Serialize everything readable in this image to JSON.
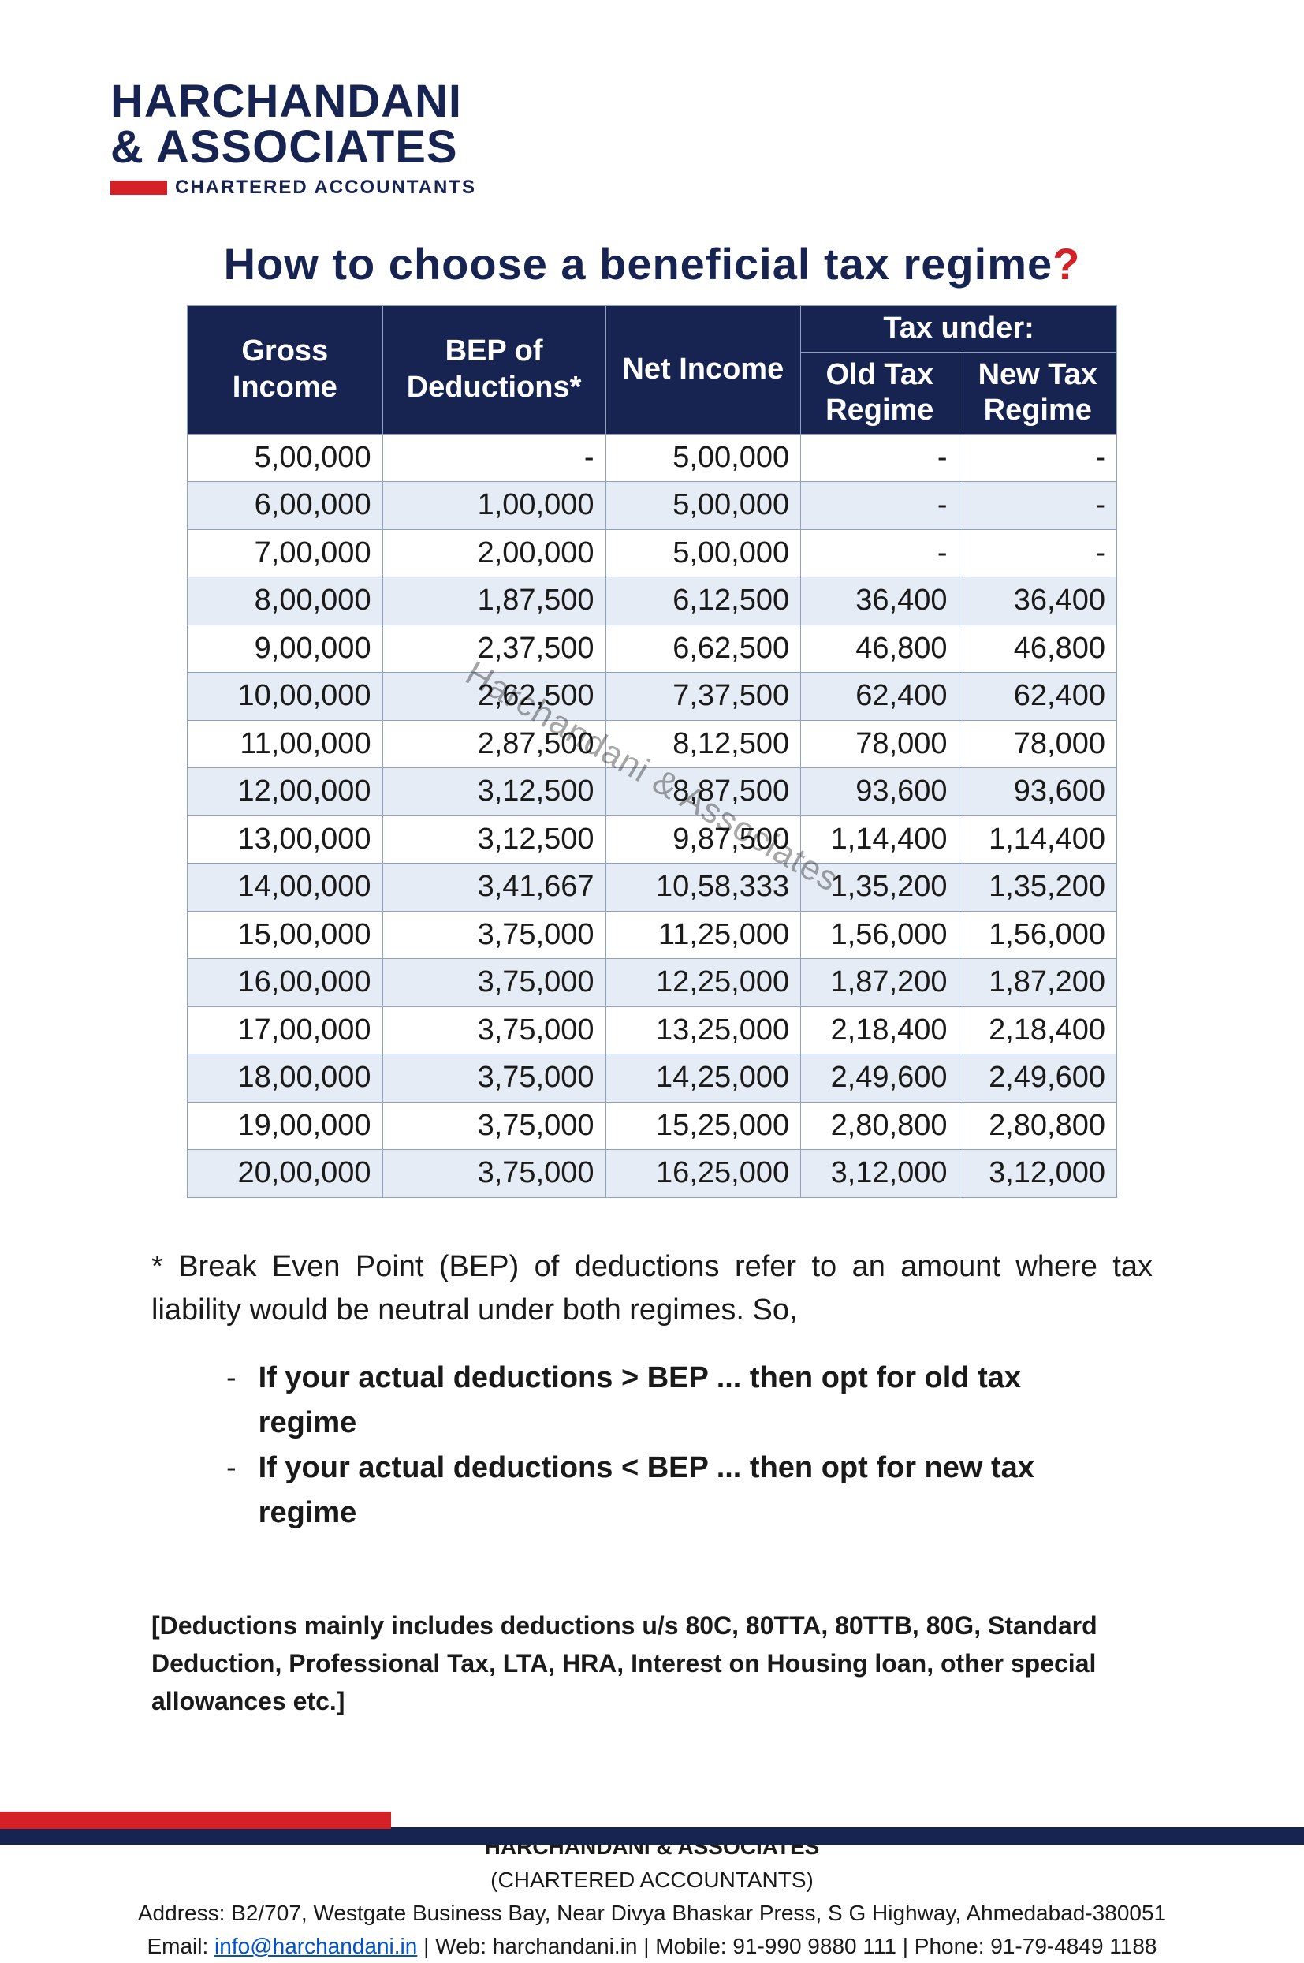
{
  "logo": {
    "line1": "HARCHANDANI",
    "line2": "& ASSOCIATES",
    "sub": "CHARTERED ACCOUNTANTS"
  },
  "title_main": "How to choose a beneficial tax regime",
  "title_q": "?",
  "watermark": "Harchandani & Associates",
  "table": {
    "header": {
      "gross": "Gross Income",
      "bep": "BEP of Deductions*",
      "net": "Net Income",
      "tax_under": "Tax under:",
      "old": "Old Tax Regime",
      "new": "New Tax Regime"
    },
    "rows": [
      {
        "gross": "5,00,000",
        "bep": "-",
        "net": "5,00,000",
        "old": "-",
        "new": "-"
      },
      {
        "gross": "6,00,000",
        "bep": "1,00,000",
        "net": "5,00,000",
        "old": "-",
        "new": "-"
      },
      {
        "gross": "7,00,000",
        "bep": "2,00,000",
        "net": "5,00,000",
        "old": "-",
        "new": "-"
      },
      {
        "gross": "8,00,000",
        "bep": "1,87,500",
        "net": "6,12,500",
        "old": "36,400",
        "new": "36,400"
      },
      {
        "gross": "9,00,000",
        "bep": "2,37,500",
        "net": "6,62,500",
        "old": "46,800",
        "new": "46,800"
      },
      {
        "gross": "10,00,000",
        "bep": "2,62,500",
        "net": "7,37,500",
        "old": "62,400",
        "new": "62,400"
      },
      {
        "gross": "11,00,000",
        "bep": "2,87,500",
        "net": "8,12,500",
        "old": "78,000",
        "new": "78,000"
      },
      {
        "gross": "12,00,000",
        "bep": "3,12,500",
        "net": "8,87,500",
        "old": "93,600",
        "new": "93,600"
      },
      {
        "gross": "13,00,000",
        "bep": "3,12,500",
        "net": "9,87,500",
        "old": "1,14,400",
        "new": "1,14,400"
      },
      {
        "gross": "14,00,000",
        "bep": "3,41,667",
        "net": "10,58,333",
        "old": "1,35,200",
        "new": "1,35,200"
      },
      {
        "gross": "15,00,000",
        "bep": "3,75,000",
        "net": "11,25,000",
        "old": "1,56,000",
        "new": "1,56,000"
      },
      {
        "gross": "16,00,000",
        "bep": "3,75,000",
        "net": "12,25,000",
        "old": "1,87,200",
        "new": "1,87,200"
      },
      {
        "gross": "17,00,000",
        "bep": "3,75,000",
        "net": "13,25,000",
        "old": "2,18,400",
        "new": "2,18,400"
      },
      {
        "gross": "18,00,000",
        "bep": "3,75,000",
        "net": "14,25,000",
        "old": "2,49,600",
        "new": "2,49,600"
      },
      {
        "gross": "19,00,000",
        "bep": "3,75,000",
        "net": "15,25,000",
        "old": "2,80,800",
        "new": "2,80,800"
      },
      {
        "gross": "20,00,000",
        "bep": "3,75,000",
        "net": "16,25,000",
        "old": "3,12,000",
        "new": "3,12,000"
      }
    ]
  },
  "note": "* Break Even Point (BEP) of deductions refer to an amount where tax liability would be neutral under both regimes. So,",
  "bullet1": "If your actual deductions > BEP ... then opt for old tax regime",
  "bullet2": "If your actual deductions < BEP ... then opt for new tax regime",
  "ded_note": "[Deductions mainly includes deductions u/s 80C, 80TTA, 80TTB, 80G, Standard Deduction, Professional Tax, LTA, HRA, Interest on Housing loan, other special allowances etc.]",
  "footer": {
    "firm": "HARCHANDANI & ASSOCIATES",
    "desc": "(CHARTERED ACCOUNTANTS)",
    "address": "Address: B2/707, Westgate Business Bay, Near Divya Bhaskar Press, S G Highway, Ahmedabad-380051",
    "email_label": "Email: ",
    "email": "info@harchandani.in",
    "rest": " | Web: harchandani.in | Mobile: 91-990 9880 111 | Phone: 91-79-4849 1188"
  },
  "colors": {
    "navy": "#172452",
    "red": "#d42027",
    "stripe": "#e6ecf5",
    "border": "#8fa0c0"
  }
}
